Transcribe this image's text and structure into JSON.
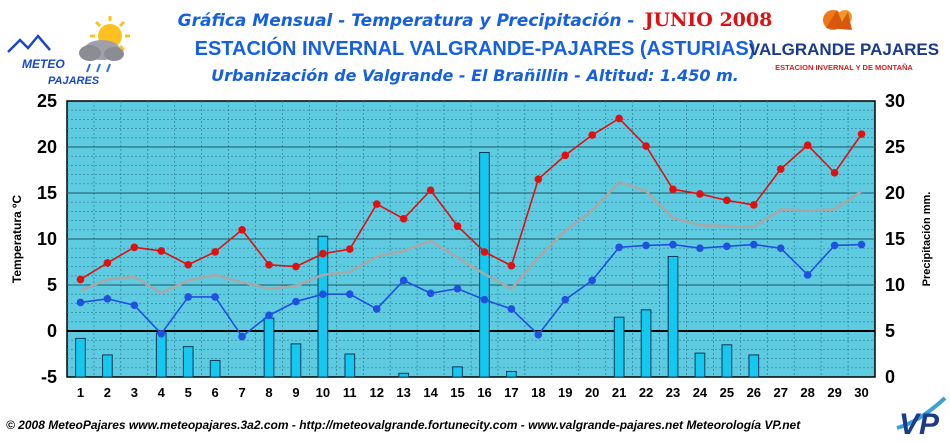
{
  "header": {
    "title_line1": "Gráfica Mensual - Temperatura y Precipitación -",
    "month_label": "JUNIO 2008",
    "title_line2": "ESTACIÓN INVERNAL VALGRANDE-PAJARES (ASTURIAS)",
    "title_line3": "Urbanización de Valgrande - El Brañillin - Altitud: 1.450 m."
  },
  "logos": {
    "left_line1": "METEO",
    "left_line2": "PAJARES",
    "right_name": "VALGRANDE PAJARES",
    "right_sub": "ESTACION INVERNAL Y DE MONTAÑA",
    "vp": "VP"
  },
  "footer": {
    "text": "© 2008 MeteoPajares www.meteopajares.3a2.com - http://meteovalgrande.fortunecity.com - www.valgrande-pajares.net Meteorología VP.net"
  },
  "colors": {
    "plot_bg": "#5ecbe0",
    "grid": "#2a7f93",
    "bar": "#14c8f0",
    "max_line": "#e01010",
    "mean_line": "#a8a8a8",
    "min_line": "#2050e0",
    "title": "#1560e0",
    "accent": "#e01010"
  },
  "chart_data": {
    "type": "bar+line",
    "x": [
      "1",
      "2",
      "3",
      "4",
      "5",
      "6",
      "7",
      "8",
      "9",
      "10",
      "11",
      "12",
      "13",
      "14",
      "15",
      "16",
      "17",
      "18",
      "19",
      "20",
      "21",
      "22",
      "23",
      "24",
      "25",
      "26",
      "27",
      "28",
      "29",
      "30"
    ],
    "ylabel_left": "Temperatura ºC",
    "ylabel_right": "Precipitación mm.",
    "ylim_left": [
      -5,
      25
    ],
    "ylim_right": [
      0,
      30
    ],
    "yticks_left": [
      "-5",
      "0",
      "5",
      "10",
      "15",
      "20",
      "25"
    ],
    "yticks_right": [
      "0",
      "5",
      "10",
      "15",
      "20",
      "25",
      "30"
    ],
    "grid": true,
    "series_lines": [
      {
        "values": [
          5.6,
          7.4,
          9.1,
          8.7,
          7.2,
          8.6,
          11.0,
          7.2,
          7.0,
          8.4,
          8.9,
          13.8,
          12.2,
          15.3,
          11.4,
          8.6,
          7.1,
          16.5,
          19.1,
          21.3,
          23.1,
          20.1,
          15.4,
          14.9,
          14.2,
          13.7,
          17.6,
          20.2,
          17.2,
          21.4
        ]
      },
      {
        "values": [
          4.4,
          5.6,
          5.9,
          4.1,
          5.5,
          6.1,
          5.3,
          4.6,
          4.9,
          6.1,
          6.4,
          8.1,
          8.7,
          9.8,
          8.0,
          6.2,
          4.6,
          8.0,
          10.9,
          13.1,
          16.2,
          15.2,
          12.3,
          11.5,
          11.4,
          11.3,
          13.2,
          13.1,
          13.2,
          15.2
        ]
      },
      {
        "values": [
          3.1,
          3.5,
          2.8,
          -0.3,
          3.7,
          3.7,
          -0.6,
          1.7,
          3.2,
          4.0,
          4.0,
          2.4,
          5.5,
          4.1,
          4.6,
          3.4,
          2.4,
          -0.4,
          3.4,
          5.5,
          9.1,
          9.3,
          9.4,
          9.0,
          9.2,
          9.4,
          9.0,
          6.1,
          9.3,
          9.4
        ]
      }
    ],
    "series_bars": {
      "values": [
        4.2,
        2.4,
        0,
        4.8,
        3.3,
        1.8,
        0,
        6.4,
        3.6,
        15.3,
        2.5,
        0,
        0.4,
        0,
        1.1,
        24.4,
        0.6,
        0,
        0,
        0,
        6.5,
        7.3,
        13.1,
        2.6,
        3.5,
        2.4,
        0,
        0,
        0,
        0
      ]
    }
  }
}
